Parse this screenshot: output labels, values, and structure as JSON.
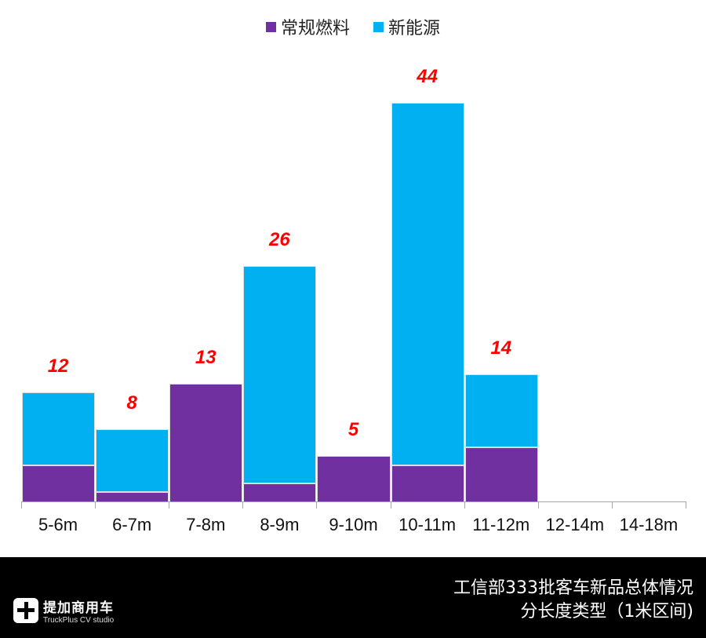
{
  "chart_data": {
    "type": "bar",
    "stacked": true,
    "title": "工信部333批客车新品总体情况 分长度类型（1米区间)",
    "categories": [
      "5-6m",
      "6-7m",
      "7-8m",
      "8-9m",
      "9-10m",
      "10-11m",
      "11-12m",
      "12-14m",
      "14-18m"
    ],
    "series": [
      {
        "name": "常规燃料",
        "color": "#7030a0",
        "values": [
          4,
          1,
          13,
          2,
          5,
          4,
          6,
          0,
          0
        ]
      },
      {
        "name": "新能源",
        "color": "#00b0f0",
        "values": [
          8,
          7,
          0,
          24,
          0,
          40,
          8,
          0,
          0
        ]
      }
    ],
    "totals": [
      12,
      8,
      13,
      26,
      5,
      44,
      14,
      null,
      null
    ],
    "total_label_color": "#ff0000",
    "xlabel": "",
    "ylabel": "",
    "ylim": [
      0,
      48
    ],
    "grid": false,
    "legend_position": "top"
  },
  "legend": {
    "items": [
      {
        "label": "常规燃料",
        "color": "#7030a0"
      },
      {
        "label": "新能源",
        "color": "#00b0f0"
      }
    ]
  },
  "footer": {
    "brand_cn": "提加商用车",
    "brand_en": "TruckPlus CV studio",
    "caption_line1": "工信部333批客车新品总体情况",
    "caption_line2": "分长度类型（1米区间)"
  }
}
